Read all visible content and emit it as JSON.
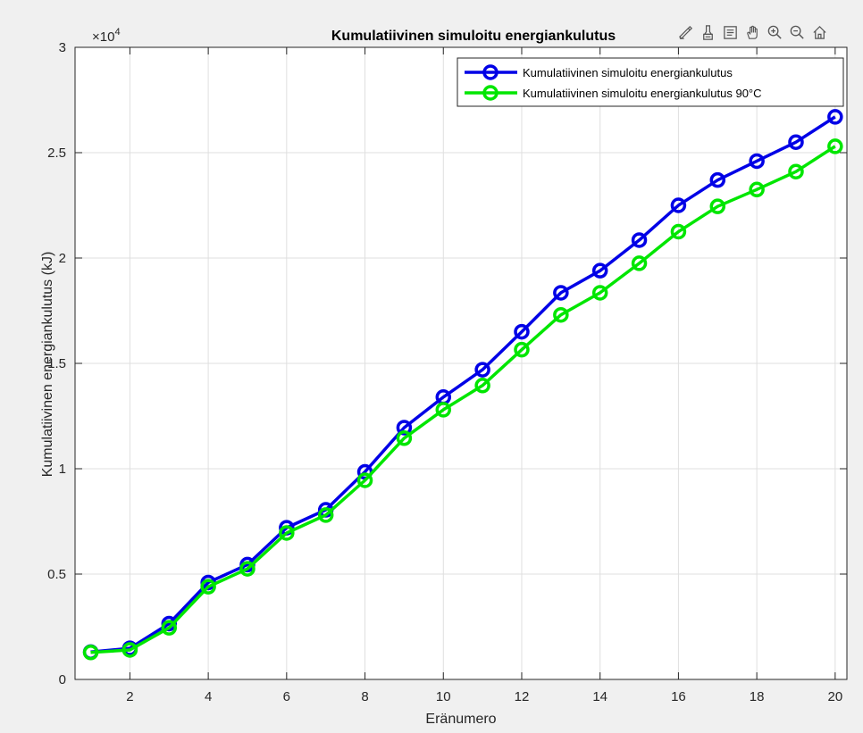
{
  "toolbar": {
    "icons": [
      "edit-icon",
      "brush-icon",
      "data-tips-icon",
      "pan-hand-icon",
      "zoom-in-icon",
      "zoom-out-icon",
      "home-icon"
    ]
  },
  "colors": {
    "series1": "#0000e6",
    "series2": "#00e600",
    "grid": "#dfdfdf",
    "axes": "#262626",
    "plot_bg": "#ffffff",
    "figure_bg": "#f0f0f0"
  },
  "chart_data": {
    "type": "line",
    "title": "Kumulatiivinen simuloitu energiankulutus",
    "xlabel": "Eränumero",
    "ylabel": "Kumulatiivinen energiankulutus (kJ)",
    "y_exponent_label": "×10",
    "y_exponent_power": "4",
    "xlim": [
      0.6,
      20.3
    ],
    "ylim": [
      0,
      30000
    ],
    "xticks": [
      2,
      4,
      6,
      8,
      10,
      12,
      14,
      16,
      18,
      20
    ],
    "yticks": [
      0,
      5000,
      10000,
      15000,
      20000,
      25000,
      30000
    ],
    "ytick_labels": [
      "0",
      "0.5",
      "1",
      "1.5",
      "2",
      "2.5",
      "3"
    ],
    "xtick_labels": [
      "2",
      "4",
      "6",
      "8",
      "10",
      "12",
      "14",
      "16",
      "18",
      "20"
    ],
    "grid": true,
    "legend_position": "top-right",
    "x": [
      1,
      2,
      3,
      4,
      5,
      6,
      7,
      8,
      9,
      10,
      11,
      12,
      13,
      14,
      15,
      16,
      17,
      18,
      19,
      20
    ],
    "series": [
      {
        "name": "Kumulatiivinen simuloitu energiankulutus",
        "color": "#0000e6",
        "marker": "circle",
        "values": [
          1300,
          1480,
          2650,
          4600,
          5450,
          7200,
          8050,
          9850,
          11950,
          13400,
          14700,
          16500,
          18350,
          19400,
          20850,
          22500,
          23700,
          24600,
          25500,
          26700
        ]
      },
      {
        "name": "Kumulatiivinen simuloitu energiankulutus 90°C",
        "color": "#00e600",
        "marker": "circle",
        "values": [
          1280,
          1400,
          2450,
          4400,
          5250,
          6950,
          7800,
          9450,
          11450,
          12800,
          13950,
          15650,
          17300,
          18350,
          19750,
          21250,
          22450,
          23250,
          24100,
          25300
        ]
      }
    ]
  }
}
